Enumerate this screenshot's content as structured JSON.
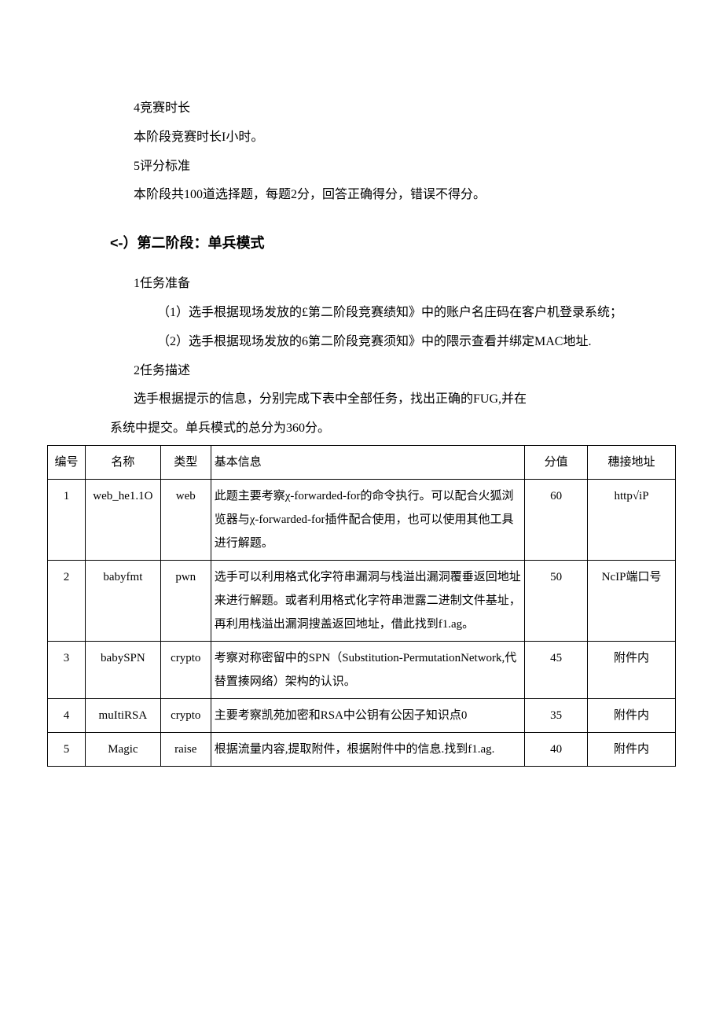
{
  "intro": {
    "line1": "4竞赛时长",
    "line2": "本阶段竞赛时长I小时。",
    "line3": "5评分标准",
    "line4": "本阶段共100道选择题，每题2分，回答正确得分，错误不得分。"
  },
  "section2": {
    "heading": "<-）第二阶段：单兵模式",
    "prep_title": "1任务准备",
    "prep_item1": "（1）选手根据现场发放的£第二阶段竞赛绩知》中的账户名庄码在客户机登录系统；",
    "prep_item2": "（2）选手根据现场发放的6第二阶段竞赛须知》中的隈示查看并绑定MAC地址.",
    "desc_title": "2任务描述",
    "desc_line1": "选手根据提示的信息，分别完成下表中全部任务，找出正确的FUG,并在",
    "desc_line2": "系统中提交。单兵模式的总分为360分。"
  },
  "table": {
    "headers": {
      "id": "编号",
      "name": "名称",
      "type": "类型",
      "info": "基本信息",
      "score": "分值",
      "addr": "穗接地址"
    },
    "rows": [
      {
        "id": "1",
        "name": "web_he1.1O",
        "type": "web",
        "info": "此题主要考察χ-forwarded-for的命令执行。可以配合火狐浏览器与χ-forwarded-for插件配合使用，也可以使用其他工具进行解题。",
        "score": "60",
        "addr": "http√iP"
      },
      {
        "id": "2",
        "name": "babyfmt",
        "type": "pwn",
        "info": "选手可以利用格式化字符串漏洞与栈溢出漏洞覆垂返回地址来进行解题。或者利用格式化字符串泄露二进制文件基址，再利用栈溢出漏洞搜盖返回地址，借此找到f1.ag。",
        "score": "50",
        "addr": "NcIP端口号"
      },
      {
        "id": "3",
        "name": "babySPN",
        "type": "crypto",
        "info": "考察对称密留中的SPN（Substitution-PermutationNetwork,代替置揍网络）架构的认识。",
        "score": "45",
        "addr": "附件内"
      },
      {
        "id": "4",
        "name": "muItiRSA",
        "type": "crypto",
        "info": "主要考察凯苑加密和RSA中公钥有公因子知识点0",
        "score": "35",
        "addr": "附件内"
      },
      {
        "id": "5",
        "name": "Magic",
        "type": "raise",
        "info": "根据流量内容,提取附件，根据附件中的信息.找到f1.ag.",
        "score": "40",
        "addr": "附件内"
      }
    ]
  },
  "style": {
    "background_color": "#ffffff",
    "text_color": "#000000",
    "border_color": "#000000",
    "body_fontsize": 16,
    "heading_fontsize": 18,
    "table_fontsize": 15,
    "line_height": 2.3
  }
}
